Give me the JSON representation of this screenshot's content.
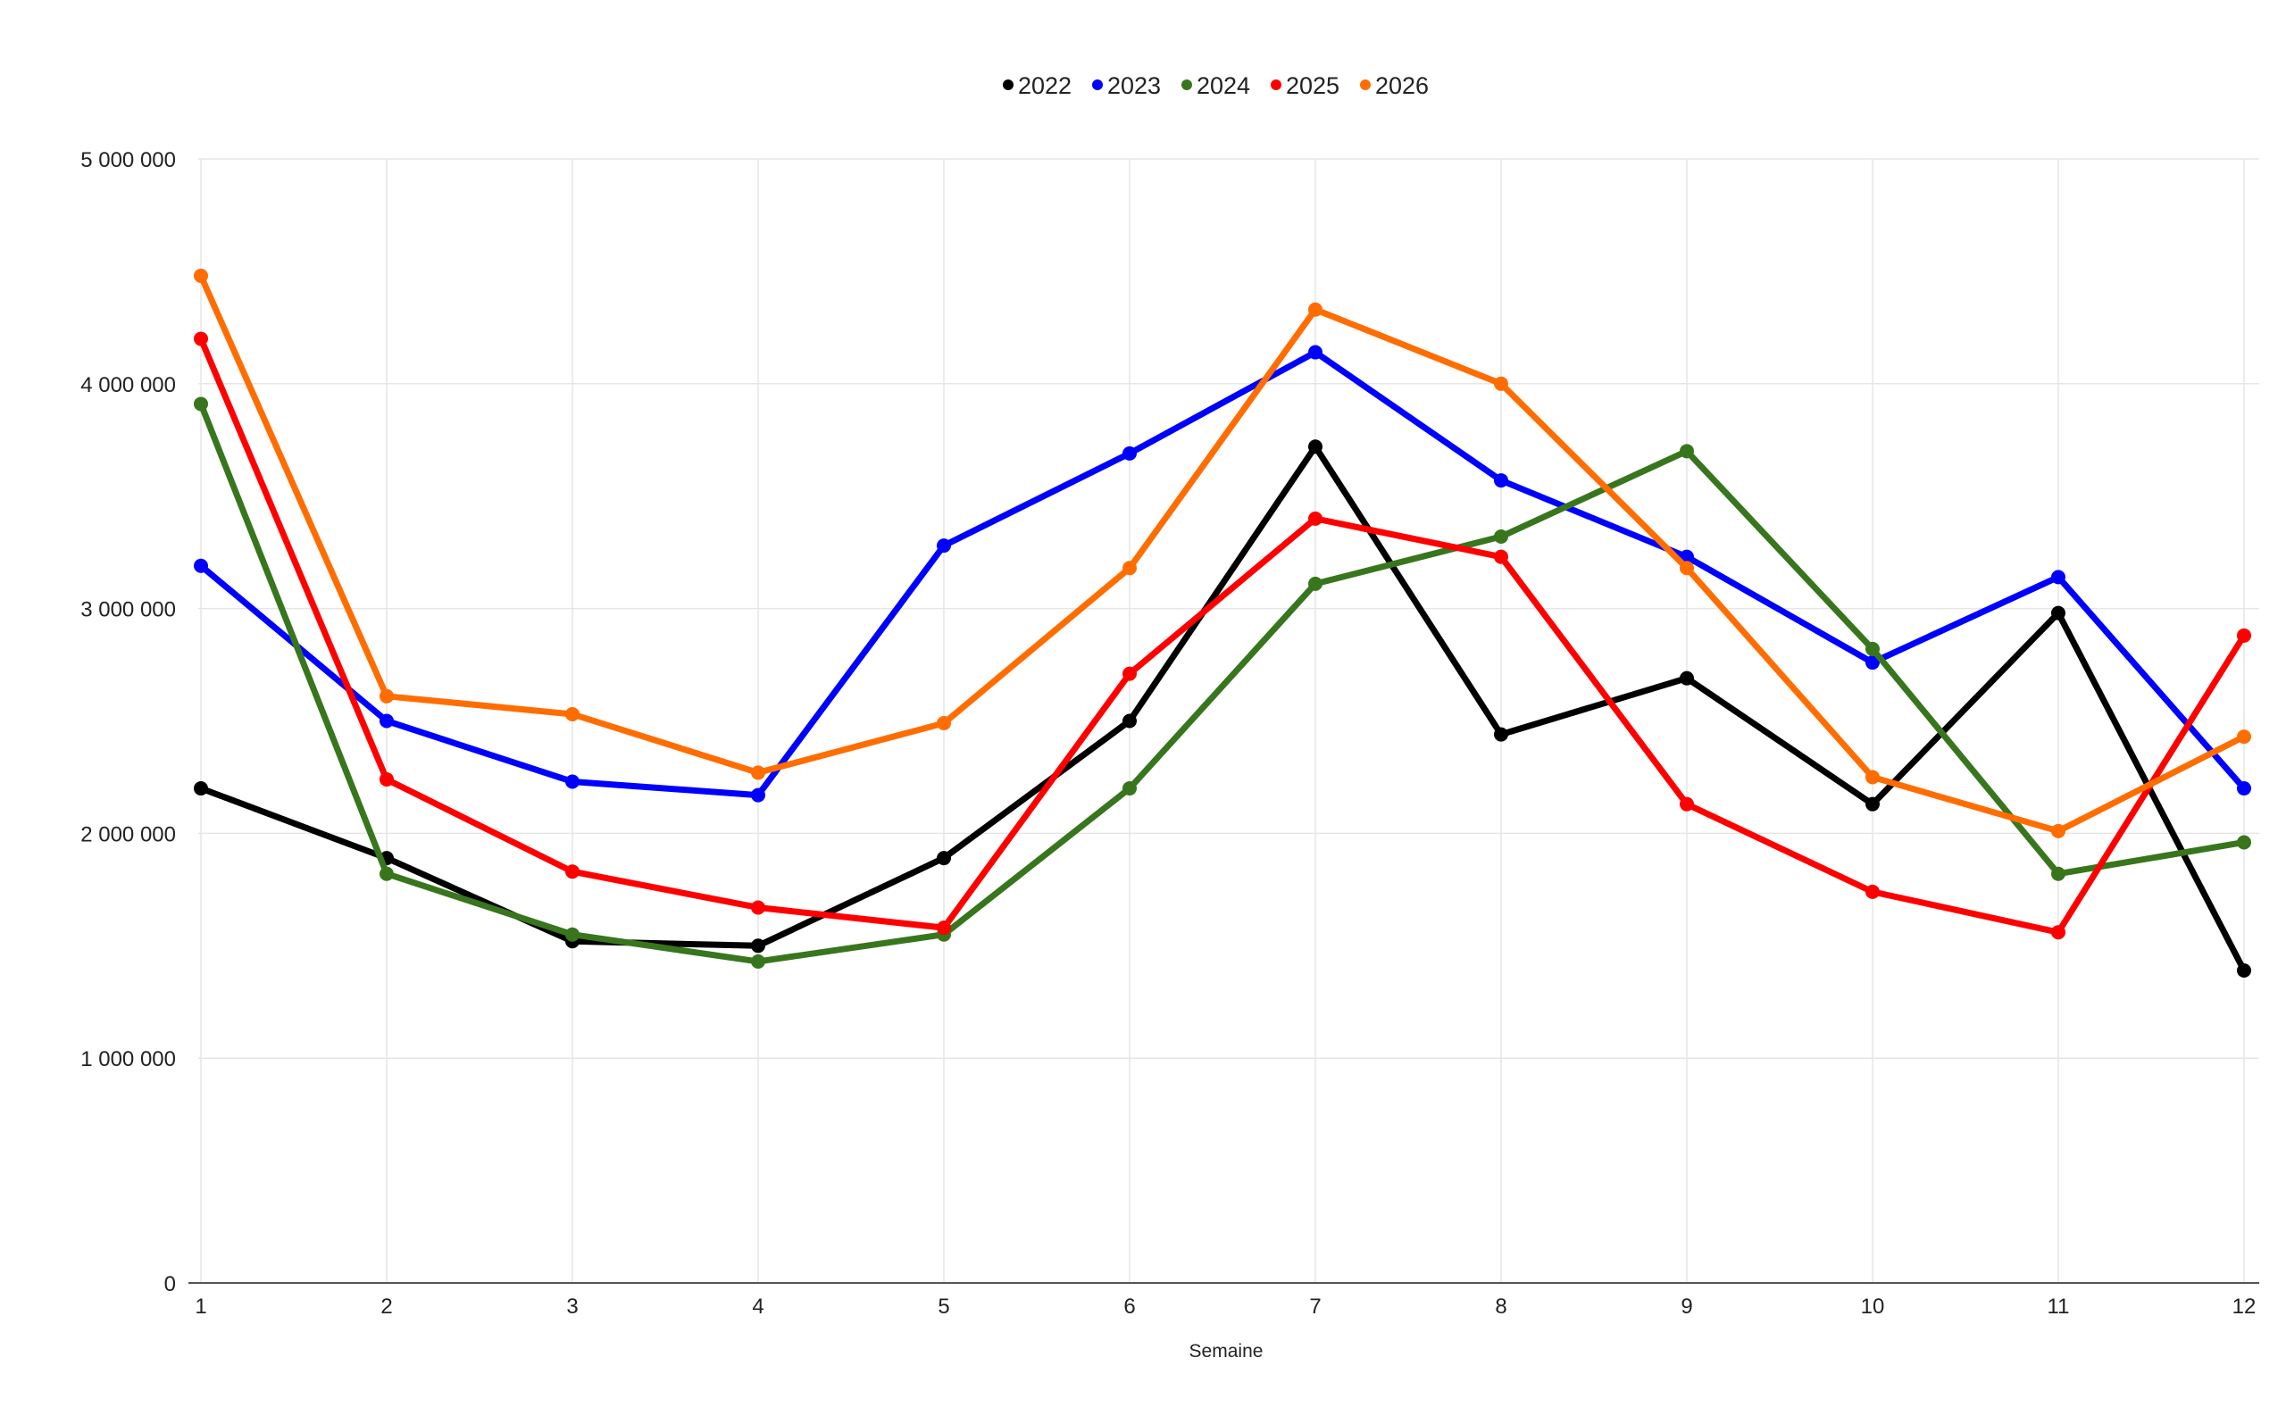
{
  "chart_data": {
    "type": "line",
    "title": "",
    "xlabel": "Semaine",
    "ylabel": "",
    "x": [
      1,
      2,
      3,
      4,
      5,
      6,
      7,
      8,
      9,
      10,
      11,
      12
    ],
    "x_tick_labels": [
      "1",
      "2",
      "3",
      "4",
      "5",
      "6",
      "7",
      "8",
      "9",
      "10",
      "11",
      "12"
    ],
    "ylim": [
      0,
      5000000
    ],
    "y_ticks": [
      0,
      1000000,
      2000000,
      3000000,
      4000000,
      5000000
    ],
    "y_tick_labels": [
      "0",
      "1 000 000",
      "2 000 000",
      "3 000 000",
      "4 000 000",
      "5 000 000"
    ],
    "grid": true,
    "legend_position": "top-center",
    "series": [
      {
        "name": "2022",
        "color": "#000000",
        "values": [
          2200000,
          1890000,
          1520000,
          1500000,
          1890000,
          2500000,
          3720000,
          2440000,
          2690000,
          2130000,
          2980000,
          1390000
        ]
      },
      {
        "name": "2023",
        "color": "#0000ff",
        "values": [
          3190000,
          2500000,
          2230000,
          2170000,
          3280000,
          3690000,
          4140000,
          3570000,
          3230000,
          2760000,
          3140000,
          2200000
        ]
      },
      {
        "name": "2024",
        "color": "#38761d",
        "values": [
          3910000,
          1820000,
          1550000,
          1430000,
          1550000,
          2200000,
          3110000,
          3320000,
          3700000,
          2820000,
          1820000,
          1960000
        ]
      },
      {
        "name": "2025",
        "color": "#ff0000",
        "values": [
          4200000,
          2240000,
          1830000,
          1670000,
          1580000,
          2710000,
          3400000,
          3230000,
          2130000,
          1740000,
          1560000,
          2880000
        ]
      },
      {
        "name": "2026",
        "color": "#ff6d01",
        "values": [
          4480000,
          2610000,
          2530000,
          2270000,
          2490000,
          3180000,
          4330000,
          4000000,
          3180000,
          2250000,
          2010000,
          2430000
        ]
      }
    ]
  }
}
